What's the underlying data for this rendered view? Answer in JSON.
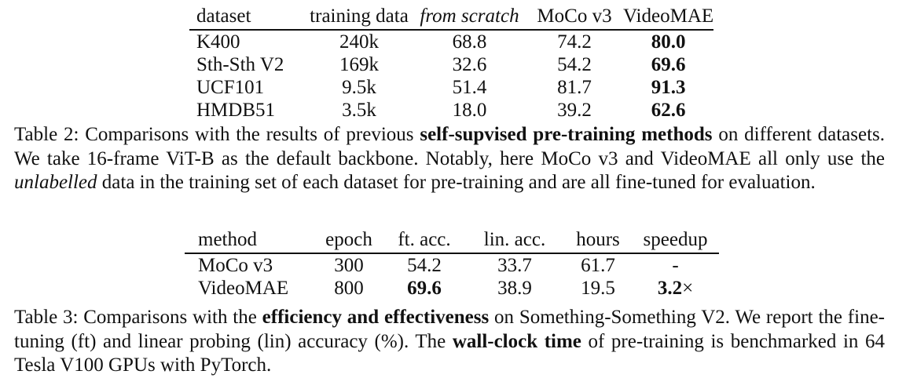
{
  "table2": {
    "headers": [
      "dataset",
      "training data",
      "from scratch",
      "MoCo v3",
      "VideoMAE"
    ],
    "rows": [
      [
        "K400",
        "240k",
        "68.8",
        "74.2",
        "80.0"
      ],
      [
        "Sth-Sth V2",
        "169k",
        "32.6",
        "54.2",
        "69.6"
      ],
      [
        "UCF101",
        "9.5k",
        "51.4",
        "81.7",
        "91.3"
      ],
      [
        "HMDB51",
        "3.5k",
        "18.0",
        "39.2",
        "62.6"
      ]
    ],
    "caption": {
      "prefix": "Table 2: Comparisons with the results of previous ",
      "bold": "self-supvised pre-training methods",
      "mid": " on different datasets. We take 16-frame ViT-B as the default backbone. Notably, here MoCo v3 and VideoMAE all only use the ",
      "italic": "unlabelled",
      "suffix": " data in the training set of each dataset for pre-training and are all fine-tuned for evaluation."
    }
  },
  "table3": {
    "headers": [
      "method",
      "epoch",
      "ft. acc.",
      "lin. acc.",
      "hours",
      "speedup"
    ],
    "rows": [
      [
        "MoCo v3",
        "300",
        "54.2",
        "33.7",
        "61.7",
        "-"
      ],
      [
        "VideoMAE",
        "800",
        "69.6",
        "38.9",
        "19.5",
        "3.2"
      ]
    ],
    "speedup_unit": "×",
    "caption": {
      "prefix": "Table 3: Comparisons with the ",
      "bold1": "efficiency and effectiveness",
      "mid": " on Something-Something V2. We report the fine-tuning (ft) and linear probing (lin) accuracy (%). The ",
      "bold2": "wall-clock time",
      "suffix": " of pre-training is benchmarked in 64 Tesla V100 GPUs with PyTorch."
    }
  }
}
